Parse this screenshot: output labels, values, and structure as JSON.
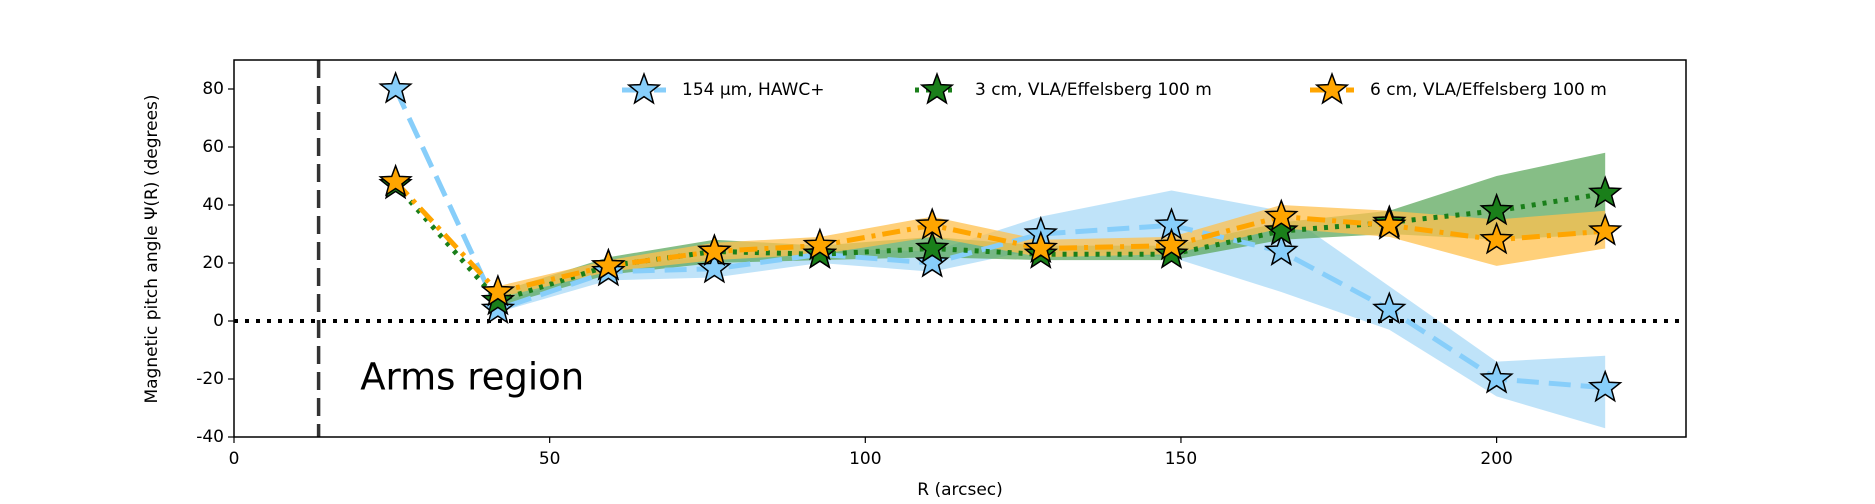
{
  "chart_data": {
    "type": "line",
    "xlabel": "R (arcsec)",
    "ylabel": "Magnetic pitch angle Ψ(R) (degrees)",
    "annotation": "Arms region",
    "x": [
      25.6,
      41.8,
      59.3,
      76.1,
      92.8,
      110.6,
      127.8,
      148.5,
      165.9,
      183,
      200,
      217.2
    ],
    "series": [
      {
        "name": "154 μm, HAWC+",
        "color": "#87cefa",
        "band_color": "#a9d9f7",
        "linestyle": "dashed",
        "values": [
          80,
          4,
          17,
          18,
          23,
          20,
          30,
          33,
          24,
          4,
          -20,
          -23
        ],
        "lower": [
          null,
          3,
          14,
          15,
          20,
          17,
          25,
          22,
          10,
          -3,
          -26,
          -37
        ],
        "upper": [
          null,
          6,
          19,
          22,
          25,
          24,
          36,
          45,
          38,
          12,
          -14,
          -12
        ]
      },
      {
        "name": "3 cm, VLA/Effelsberg 100 m",
        "color": "#1a7f1a",
        "band_color": "#5ea85e",
        "linestyle": "dotted",
        "values": [
          47,
          7,
          19,
          24,
          23,
          25,
          23,
          23,
          31,
          34,
          38,
          44
        ],
        "lower": [
          null,
          5,
          16,
          20,
          21,
          22,
          21,
          21,
          28,
          30,
          28,
          30
        ],
        "upper": [
          null,
          10,
          22,
          28,
          26,
          29,
          26,
          26,
          34,
          38,
          50,
          58
        ]
      },
      {
        "name": "6 cm, VLA/Effelsberg 100 m",
        "color": "#ffa500",
        "band_color": "#ffc04d",
        "linestyle": "dashdot",
        "values": [
          48,
          10,
          19,
          24,
          26,
          33,
          25,
          26,
          36,
          33,
          28,
          31
        ],
        "lower": [
          null,
          8,
          17,
          21,
          23,
          29,
          22,
          23,
          32,
          29,
          19,
          25
        ],
        "upper": [
          null,
          12,
          21,
          27,
          29,
          36,
          28,
          29,
          40,
          38,
          35,
          38
        ]
      }
    ],
    "xlim": [
      0,
      230
    ],
    "xticks": [
      0,
      50,
      100,
      150,
      200
    ],
    "ylim": [
      -40,
      90
    ],
    "yticks": [
      -40,
      -20,
      0,
      20,
      40,
      60,
      80
    ],
    "vline": 13.4,
    "hline": 0,
    "legend": "top-right"
  }
}
